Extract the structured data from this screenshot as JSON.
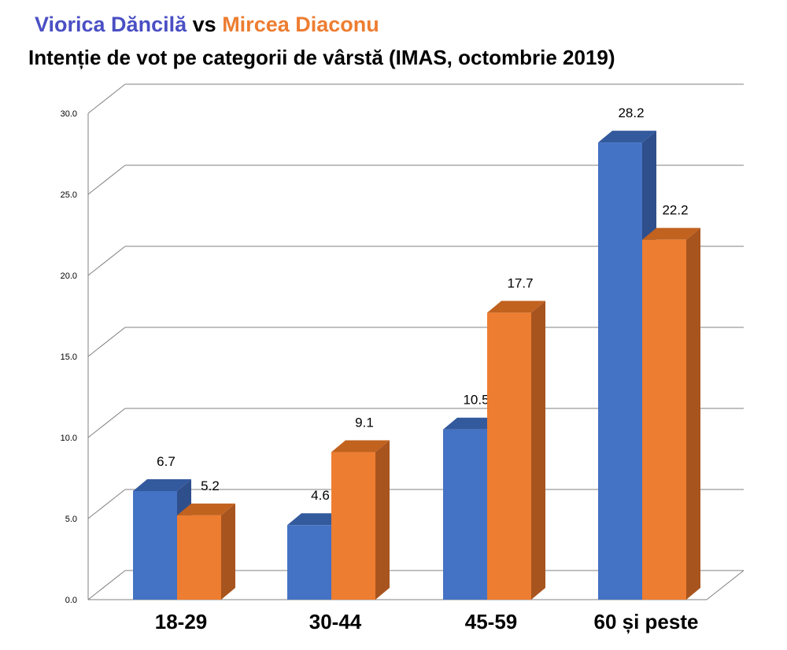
{
  "title": {
    "name1": "Viorica Dăncilă",
    "vs": "vs",
    "name2": "Mircea Diaconu",
    "subtitle": "Intenție de vot pe categorii de vârstă (IMAS, octombrie 2019)"
  },
  "colors": {
    "series1": "#4472C4",
    "series1_dark": "#2F4F8C",
    "series1_top": "#345A9E",
    "series2": "#ED7D31",
    "series2_dark": "#A8541E",
    "series2_top": "#C1621F",
    "name1_title": "#4A4FC4",
    "name2_title": "#ED7D31",
    "grid": "#808080"
  },
  "chart_data": {
    "type": "bar",
    "categories": [
      "18-29",
      "30-44",
      "45-59",
      "60 și peste"
    ],
    "series": [
      {
        "name": "Viorica Dăncilă",
        "values": [
          6.7,
          4.6,
          10.5,
          28.2
        ]
      },
      {
        "name": "Mircea Diaconu",
        "values": [
          5.2,
          9.1,
          17.7,
          22.2
        ]
      }
    ],
    "data_labels": [
      [
        "6.7",
        "4.6",
        "10.5",
        "28.2"
      ],
      [
        "5.2",
        "9.1",
        "17.7",
        "22.2"
      ]
    ],
    "yticks": [
      "0.0",
      "5.0",
      "10.0",
      "15.0",
      "20.0",
      "25.0",
      "30.0"
    ],
    "ylim": [
      0,
      30
    ],
    "grid": true,
    "three_d": true
  }
}
